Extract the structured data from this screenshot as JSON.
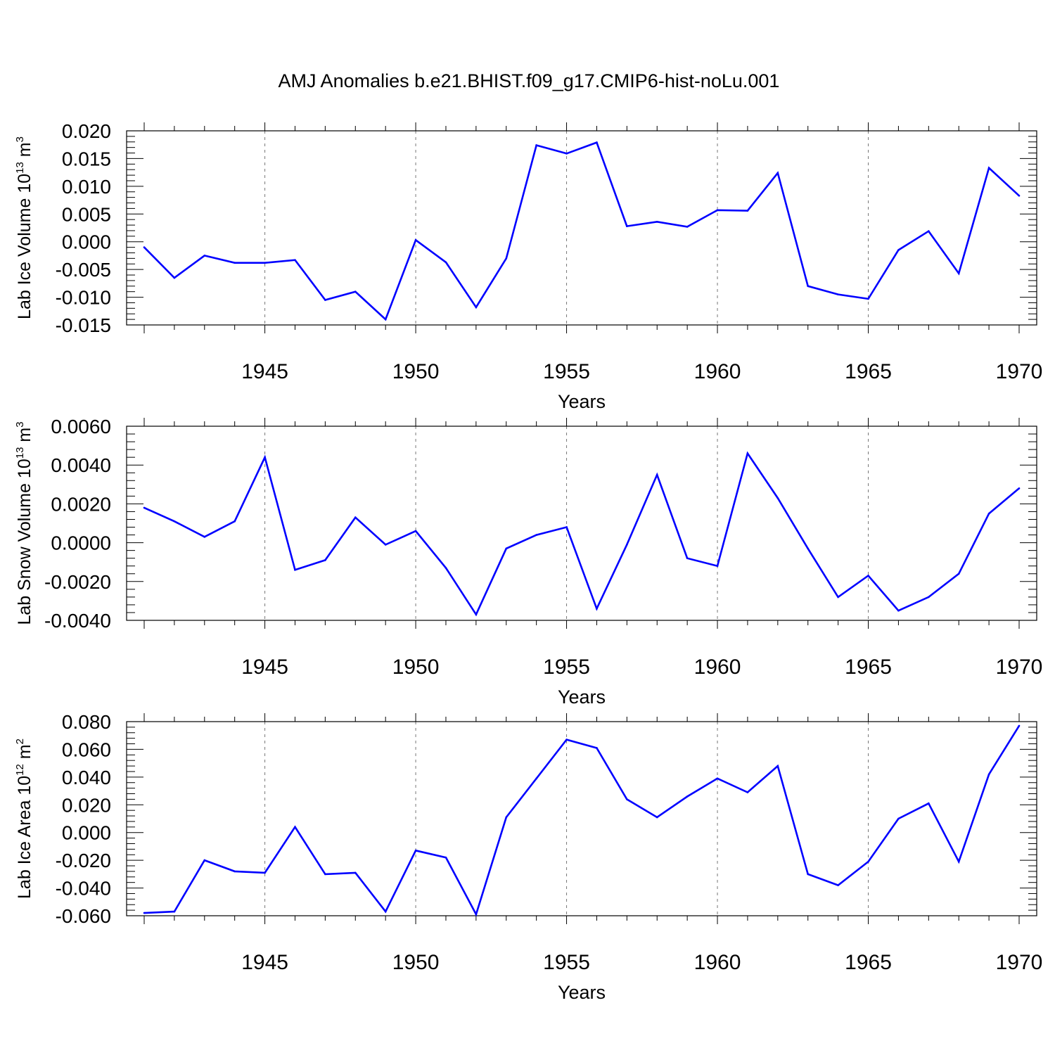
{
  "title": "AMJ Anomalies b.e21.BHIST.f09_g17.CMIP6-hist-noLu.001",
  "chart_data": [
    {
      "type": "line",
      "ylabel": "Lab Ice Volume 10",
      "ylabel_exp": "13",
      "ylabel_unit": " m",
      "ylabel_unit_exp": "3",
      "xlabel": "Years",
      "xlim": [
        1941,
        1970
      ],
      "ylim": [
        -0.015,
        0.02
      ],
      "x_ticks": [
        1945,
        1950,
        1955,
        1960,
        1965,
        1970
      ],
      "y_ticks": [
        -0.015,
        -0.01,
        -0.005,
        0.0,
        0.005,
        0.01,
        0.015,
        0.02
      ],
      "y_tick_labels": [
        "-0.015",
        "-0.010",
        "-0.005",
        "0.000",
        "0.005",
        "0.010",
        "0.015",
        "0.020"
      ],
      "x_tick_labels": [
        "1945",
        "1950",
        "1955",
        "1960",
        "1965",
        "1970"
      ],
      "series": [
        {
          "name": "Lab Ice Volume",
          "color": "#0000ff",
          "x": [
            1941,
            1942,
            1943,
            1944,
            1945,
            1946,
            1947,
            1948,
            1949,
            1950,
            1951,
            1952,
            1953,
            1954,
            1955,
            1956,
            1957,
            1958,
            1959,
            1960,
            1961,
            1962,
            1963,
            1964,
            1965,
            1966,
            1967,
            1968,
            1969,
            1970
          ],
          "values": [
            -0.001,
            -0.0065,
            -0.0025,
            -0.0038,
            -0.0038,
            -0.0033,
            -0.0105,
            -0.009,
            -0.014,
            0.0003,
            -0.0037,
            -0.0118,
            -0.003,
            0.0174,
            0.0159,
            0.0179,
            0.0028,
            0.0036,
            0.0027,
            0.0057,
            0.0056,
            0.0124,
            -0.008,
            -0.0095,
            -0.0103,
            -0.0015,
            0.0019,
            -0.0057,
            0.0133,
            0.0083
          ]
        }
      ]
    },
    {
      "type": "line",
      "ylabel": "Lab Snow Volume 10",
      "ylabel_exp": "13",
      "ylabel_unit": " m",
      "ylabel_unit_exp": "3",
      "xlabel": "Years",
      "xlim": [
        1941,
        1970
      ],
      "ylim": [
        -0.004,
        0.006
      ],
      "x_ticks": [
        1945,
        1950,
        1955,
        1960,
        1965,
        1970
      ],
      "y_ticks": [
        -0.004,
        -0.002,
        0.0,
        0.002,
        0.004,
        0.006
      ],
      "y_tick_labels": [
        "-0.0040",
        "-0.0020",
        "0.0000",
        "0.0020",
        "0.0040",
        "0.0060"
      ],
      "x_tick_labels": [
        "1945",
        "1950",
        "1955",
        "1960",
        "1965",
        "1970"
      ],
      "series": [
        {
          "name": "Lab Snow Volume",
          "color": "#0000ff",
          "x": [
            1941,
            1942,
            1943,
            1944,
            1945,
            1946,
            1947,
            1948,
            1949,
            1950,
            1951,
            1952,
            1953,
            1954,
            1955,
            1956,
            1957,
            1958,
            1959,
            1960,
            1961,
            1962,
            1963,
            1964,
            1965,
            1966,
            1967,
            1968,
            1969,
            1970
          ],
          "values": [
            0.0018,
            0.0011,
            0.0003,
            0.0011,
            0.0044,
            -0.0014,
            -0.0009,
            0.0013,
            -0.0001,
            0.0006,
            -0.0013,
            -0.0037,
            -0.0003,
            0.0004,
            0.0008,
            -0.0034,
            -0.0001,
            0.0035,
            -0.0008,
            -0.0012,
            0.0046,
            0.0023,
            -0.0003,
            -0.0028,
            -0.0017,
            -0.0035,
            -0.0028,
            -0.0016,
            0.0015,
            0.0028
          ]
        }
      ]
    },
    {
      "type": "line",
      "ylabel": "Lab Ice Area 10",
      "ylabel_exp": "12",
      "ylabel_unit": " m",
      "ylabel_unit_exp": "2",
      "xlabel": "Years",
      "xlim": [
        1941,
        1970
      ],
      "ylim": [
        -0.06,
        0.08
      ],
      "x_ticks": [
        1945,
        1950,
        1955,
        1960,
        1965,
        1970
      ],
      "y_ticks": [
        -0.06,
        -0.04,
        -0.02,
        0.0,
        0.02,
        0.04,
        0.06,
        0.08
      ],
      "y_tick_labels": [
        "-0.060",
        "-0.040",
        "-0.020",
        "0.000",
        "0.020",
        "0.040",
        "0.060",
        "0.080"
      ],
      "x_tick_labels": [
        "1945",
        "1950",
        "1955",
        "1960",
        "1965",
        "1970"
      ],
      "series": [
        {
          "name": "Lab Ice Area",
          "color": "#0000ff",
          "x": [
            1941,
            1942,
            1943,
            1944,
            1945,
            1946,
            1947,
            1948,
            1949,
            1950,
            1951,
            1952,
            1953,
            1954,
            1955,
            1956,
            1957,
            1958,
            1959,
            1960,
            1961,
            1962,
            1963,
            1964,
            1965,
            1966,
            1967,
            1968,
            1969,
            1970
          ],
          "values": [
            -0.058,
            -0.057,
            -0.02,
            -0.028,
            -0.029,
            0.004,
            -0.03,
            -0.029,
            -0.057,
            -0.013,
            -0.018,
            -0.059,
            0.011,
            0.039,
            0.067,
            0.061,
            0.024,
            0.011,
            0.026,
            0.039,
            0.029,
            0.048,
            -0.03,
            -0.038,
            -0.021,
            0.01,
            0.021,
            -0.021,
            0.042,
            0.077
          ]
        }
      ]
    }
  ]
}
